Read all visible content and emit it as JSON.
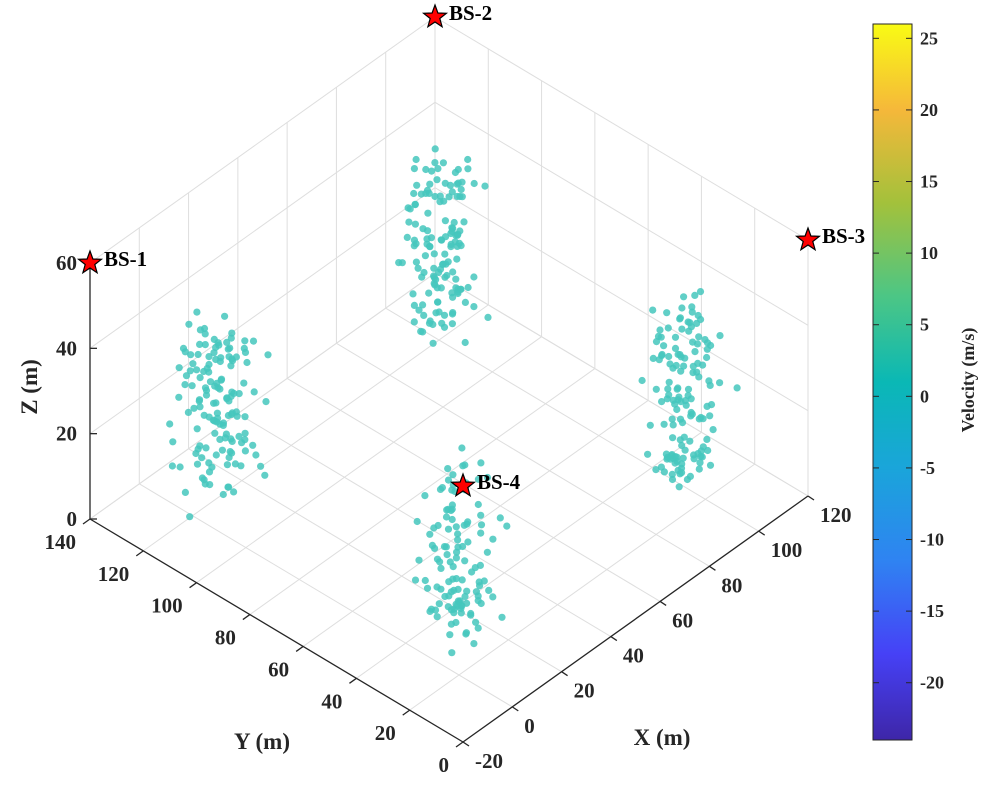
{
  "chart_data": {
    "type": "scatter",
    "dimensions": 3,
    "xlabel": "X (m)",
    "ylabel": "Y (m)",
    "zlabel": "Z (m)",
    "xlim": [
      -20,
      120
    ],
    "ylim": [
      0,
      140
    ],
    "zlim": [
      0,
      60
    ],
    "xticks": [
      "-20",
      "0",
      "20",
      "40",
      "60",
      "80",
      "100",
      "120"
    ],
    "yticks": [
      "0",
      "20",
      "40",
      "60",
      "80",
      "100",
      "120",
      "140"
    ],
    "zticks": [
      "0",
      "20",
      "40",
      "60"
    ],
    "grid": true,
    "marker_color": "#45c7bd",
    "base_stations": [
      {
        "label": "BS-1",
        "x": -20,
        "y": 140,
        "z": 60,
        "color": "#ff0000"
      },
      {
        "label": "BS-2",
        "x": 120,
        "y": 140,
        "z": 60,
        "color": "#ff0000"
      },
      {
        "label": "BS-3",
        "x": 120,
        "y": 0,
        "z": 60,
        "color": "#ff0000"
      },
      {
        "label": "BS-4",
        "x": -20,
        "y": 0,
        "z": 60,
        "color": "#ff0000"
      }
    ],
    "clusters": [
      {
        "center": [
          5,
          115
        ],
        "spread": 9,
        "z_range": [
          5,
          45
        ],
        "points": 140
      },
      {
        "center": [
          95,
          115
        ],
        "spread": 9,
        "z_range": [
          5,
          45
        ],
        "points": 140
      },
      {
        "center": [
          95,
          25
        ],
        "spread": 9,
        "z_range": [
          5,
          45
        ],
        "points": 140
      },
      {
        "center": [
          5,
          25
        ],
        "spread": 9,
        "z_range": [
          5,
          45
        ],
        "points": 120
      }
    ],
    "colorbar": {
      "label": "Velocity (m/s)",
      "min": -24,
      "max": 26,
      "ticks": [
        "25",
        "20",
        "15",
        "10",
        "5",
        "0",
        "-5",
        "-10",
        "-15",
        "-20"
      ],
      "colormap": "parula"
    }
  }
}
